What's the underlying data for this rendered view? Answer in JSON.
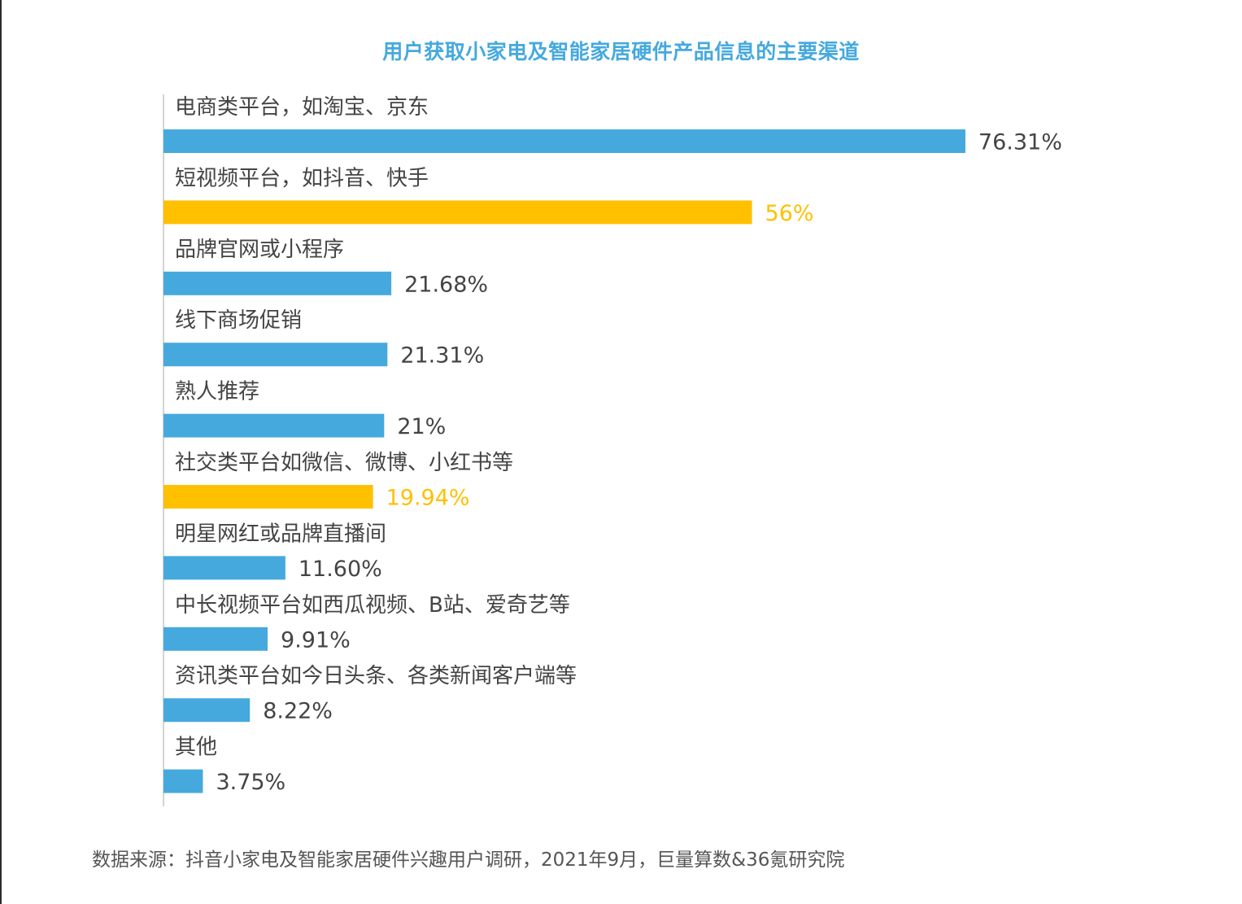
{
  "chart_data": {
    "type": "bar",
    "orientation": "horizontal",
    "title": "用户获取小家电及智能家居硬件产品信息的主要渠道",
    "xlim": [
      0,
      100
    ],
    "grid": false,
    "legend": "none",
    "value_format": "percent",
    "categories": [
      "电商类平台，如淘宝、京东",
      "短视频平台，如抖音、快手",
      "品牌官网或小程序",
      "线下商场促销",
      "熟人推荐",
      "社交类平台如微信、微博、小红书等",
      "明星网红或品牌直播间",
      "中长视频平台如西瓜视频、B站、爱奇艺等",
      "资讯类平台如今日头条、各类新闻客户端等",
      "其他"
    ],
    "values": [
      76.31,
      56,
      21.68,
      21.31,
      21,
      19.94,
      11.6,
      9.91,
      8.22,
      3.75
    ],
    "value_labels": [
      "76.31%",
      "56%",
      "21.68%",
      "21.31%",
      "21%",
      "19.94%",
      "11.60%",
      "9.91%",
      "8.22%",
      "3.75%"
    ],
    "highlight": [
      false,
      true,
      false,
      false,
      false,
      true,
      false,
      false,
      false,
      false
    ]
  },
  "colors": {
    "bar": "#45a9de",
    "highlight": "#ffc000",
    "category_text": "#444444",
    "value_text": "#444444",
    "axis": "#d4d4d4",
    "title": "#45a9de"
  },
  "source_text": "数据来源：抖音小家电及智能家居硬件兴趣用户调研，2021年9月，巨量算数&36氪研究院"
}
